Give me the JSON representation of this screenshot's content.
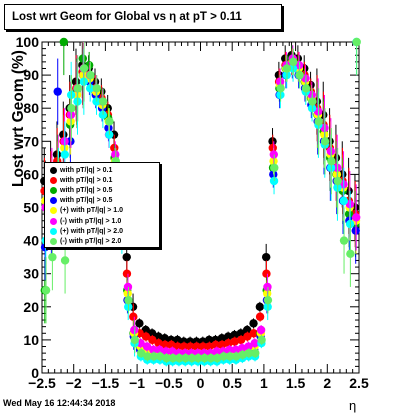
{
  "chart_data": {
    "type": "scatter",
    "title": "Lost wrt Geom for Global vs   η at pT > 0.11",
    "xlabel": "η",
    "ylabel": "Lost wrt Geom (%)",
    "xlim": [
      -2.5,
      2.5
    ],
    "ylim": [
      0,
      100
    ],
    "x_ticks": [
      "−2.5",
      "−2",
      "−1.5",
      "−1",
      "−0.5",
      "0",
      "0.5",
      "1",
      "1.5",
      "2",
      "2.5"
    ],
    "x_tick_values": [
      -2.5,
      -2,
      -1.5,
      -1,
      -0.5,
      0,
      0.5,
      1,
      1.5,
      2,
      2.5
    ],
    "y_ticks": [
      "0",
      "10",
      "20",
      "30",
      "40",
      "50",
      "60",
      "70",
      "80",
      "90",
      "100"
    ],
    "y_tick_values": [
      0,
      10,
      20,
      30,
      40,
      50,
      60,
      70,
      80,
      90,
      100
    ],
    "grid": false,
    "legend_position": "left-middle",
    "series": [
      {
        "name": "with pT/|q| > 0.1",
        "color": "#000000",
        "x": [
          -2.45,
          -2.35,
          -2.25,
          -2.15,
          -2.05,
          -1.95,
          -1.85,
          -1.75,
          -1.65,
          -1.55,
          -1.45,
          -1.35,
          -1.25,
          -1.15,
          -1.05,
          -0.95,
          -0.85,
          -0.75,
          -0.65,
          -0.55,
          -0.45,
          -0.35,
          -0.25,
          -0.15,
          -0.05,
          0.05,
          0.15,
          0.25,
          0.35,
          0.45,
          0.55,
          0.65,
          0.75,
          0.85,
          0.95,
          1.05,
          1.15,
          1.25,
          1.35,
          1.45,
          1.55,
          1.65,
          1.75,
          1.85,
          1.95,
          2.05,
          2.15,
          2.25,
          2.35,
          2.45
        ],
        "y": [
          58,
          60,
          66,
          72,
          80,
          88,
          93,
          92,
          88,
          85,
          80,
          72,
          55,
          35,
          20,
          15,
          13,
          12,
          11,
          10.5,
          10,
          10,
          9.5,
          9.5,
          9.5,
          9.5,
          10,
          10,
          10.5,
          11,
          11.5,
          12,
          13,
          15,
          20,
          35,
          70,
          90,
          95,
          96,
          95,
          92,
          87,
          82,
          78,
          70,
          65,
          60,
          55,
          50
        ]
      },
      {
        "name": "with pT/|q| > 0.1",
        "color": "#ff0000",
        "x": [
          -2.45,
          -2.35,
          -2.25,
          -2.15,
          -2.05,
          -1.95,
          -1.85,
          -1.75,
          -1.65,
          -1.55,
          -1.45,
          -1.35,
          -1.25,
          -1.15,
          -1.05,
          -0.95,
          -0.85,
          -0.75,
          -0.65,
          -0.55,
          -0.45,
          -0.35,
          -0.25,
          -0.15,
          -0.05,
          0.05,
          0.15,
          0.25,
          0.35,
          0.45,
          0.55,
          0.65,
          0.75,
          0.85,
          0.95,
          1.05,
          1.15,
          1.25,
          1.35,
          1.45,
          1.55,
          1.65,
          1.75,
          1.85,
          1.95,
          2.05,
          2.15,
          2.25,
          2.35,
          2.45
        ],
        "y": [
          55,
          57,
          64,
          70,
          78,
          86,
          91,
          90,
          86,
          83,
          78,
          68,
          50,
          30,
          17,
          12,
          11,
          10,
          9,
          8.5,
          8.5,
          8,
          8,
          8,
          8,
          8,
          8,
          8.5,
          8.5,
          9,
          9.5,
          10,
          11,
          12,
          17,
          30,
          68,
          88,
          93,
          94,
          93,
          90,
          85,
          80,
          75,
          68,
          62,
          58,
          52,
          48
        ]
      },
      {
        "name": "with pT/|q| > 0.5",
        "color": "#00aa00",
        "x": [
          -2.45,
          -2.35,
          -2.25,
          -2.15,
          -2.05,
          -1.95,
          -1.85,
          -1.75,
          -1.65,
          -1.55,
          -1.45,
          -1.35,
          -1.25,
          -1.15,
          -1.05,
          -0.95,
          -0.85,
          -0.75,
          -0.65,
          -0.55,
          -0.45,
          -0.35,
          -0.25,
          -0.15,
          -0.05,
          0.05,
          0.15,
          0.25,
          0.35,
          0.45,
          0.55,
          0.65,
          0.75,
          0.85,
          0.95,
          1.05,
          1.15,
          1.25,
          1.35,
          1.45,
          1.55,
          1.65,
          1.75,
          1.85,
          1.95,
          2.05,
          2.15,
          2.25,
          2.35,
          2.45
        ],
        "y": [
          25,
          50,
          62,
          100,
          75,
          85,
          95,
          93,
          85,
          82,
          77,
          65,
          45,
          25,
          12,
          8,
          7,
          6,
          6,
          5.5,
          5.5,
          5,
          5,
          5,
          5,
          5,
          5,
          5.5,
          5.5,
          6,
          6,
          6.5,
          7,
          8,
          12,
          25,
          62,
          86,
          92,
          95,
          92,
          88,
          83,
          78,
          73,
          65,
          60,
          55,
          48,
          45
        ]
      },
      {
        "name": "with pT/|q| > 0.5",
        "color": "#0000ff",
        "x": [
          -2.45,
          -2.35,
          -2.25,
          -2.15,
          -2.05,
          -1.95,
          -1.85,
          -1.75,
          -1.65,
          -1.55,
          -1.45,
          -1.35,
          -1.25,
          -1.15,
          -1.05,
          -0.95,
          -0.85,
          -0.75,
          -0.65,
          -0.55,
          -0.45,
          -0.35,
          -0.25,
          -0.15,
          -0.05,
          0.05,
          0.15,
          0.25,
          0.35,
          0.45,
          0.55,
          0.65,
          0.75,
          0.85,
          0.95,
          1.05,
          1.15,
          1.25,
          1.35,
          1.45,
          1.55,
          1.65,
          1.75,
          1.85,
          1.95,
          2.05,
          2.15,
          2.25,
          2.35,
          2.45
        ],
        "y": [
          38,
          45,
          85,
          60,
          70,
          84,
          90,
          88,
          84,
          80,
          74,
          62,
          42,
          22,
          11,
          7,
          6,
          5.5,
          5,
          5,
          4.5,
          4.5,
          4.5,
          4.5,
          4.5,
          4.5,
          4.5,
          4.5,
          5,
          5,
          5.5,
          6,
          6.5,
          7,
          11,
          22,
          60,
          84,
          90,
          93,
          90,
          86,
          81,
          76,
          70,
          62,
          58,
          52,
          46,
          43
        ]
      },
      {
        "name": "(+) with pT/|q| > 1.0",
        "color": "#ffff00",
        "x": [
          -2.45,
          -2.35,
          -2.25,
          -2.15,
          -2.05,
          -1.95,
          -1.85,
          -1.75,
          -1.65,
          -1.55,
          -1.45,
          -1.35,
          -1.25,
          -1.15,
          -1.05,
          -0.95,
          -0.85,
          -0.75,
          -0.65,
          -0.55,
          -0.45,
          -0.35,
          -0.25,
          -0.15,
          -0.05,
          0.05,
          0.15,
          0.25,
          0.35,
          0.45,
          0.55,
          0.65,
          0.75,
          0.85,
          0.95,
          1.05,
          1.15,
          1.25,
          1.35,
          1.45,
          1.55,
          1.65,
          1.75,
          1.85,
          1.95,
          2.05,
          2.15,
          2.25,
          2.35,
          2.45
        ],
        "y": [
          52,
          55,
          60,
          68,
          76,
          84,
          90,
          89,
          85,
          81,
          76,
          64,
          44,
          24,
          12,
          8,
          7,
          6,
          6,
          6,
          5.5,
          5.5,
          5.5,
          5.5,
          5.5,
          5.5,
          5.5,
          5.5,
          6,
          6,
          6.5,
          7,
          7.5,
          8,
          12,
          24,
          64,
          87,
          92,
          94,
          92,
          88,
          83,
          78,
          72,
          66,
          60,
          56,
          50,
          46
        ]
      },
      {
        "name": "(-) with pT/|q| > 1.0",
        "color": "#ff00ff",
        "x": [
          -2.45,
          -2.35,
          -2.25,
          -2.15,
          -2.05,
          -1.95,
          -1.85,
          -1.75,
          -1.65,
          -1.55,
          -1.45,
          -1.35,
          -1.25,
          -1.15,
          -1.05,
          -0.95,
          -0.85,
          -0.75,
          -0.65,
          -0.55,
          -0.45,
          -0.35,
          -0.25,
          -0.15,
          -0.05,
          0.05,
          0.15,
          0.25,
          0.35,
          0.45,
          0.55,
          0.65,
          0.75,
          0.85,
          0.95,
          1.05,
          1.15,
          1.25,
          1.35,
          1.45,
          1.55,
          1.65,
          1.75,
          1.85,
          1.95,
          2.05,
          2.15,
          2.25,
          2.35,
          2.45
        ],
        "y": [
          50,
          58,
          62,
          70,
          78,
          86,
          92,
          90,
          86,
          82,
          72,
          66,
          48,
          26,
          13,
          9,
          8,
          7,
          7,
          6.5,
          6.5,
          6,
          6,
          6,
          6,
          6,
          6,
          6.5,
          6.5,
          7,
          7,
          7.5,
          8,
          9,
          13,
          26,
          66,
          88,
          93,
          95,
          93,
          89,
          84,
          79,
          74,
          67,
          62,
          57,
          51,
          47
        ]
      },
      {
        "name": "(+) with pT/|q| > 2.0",
        "color": "#00ffff",
        "x": [
          -2.45,
          -2.35,
          -2.25,
          -2.15,
          -2.05,
          -1.95,
          -1.85,
          -1.75,
          -1.65,
          -1.55,
          -1.45,
          -1.35,
          -1.25,
          -1.15,
          -1.05,
          -0.95,
          -0.85,
          -0.75,
          -0.65,
          -0.55,
          -0.45,
          -0.35,
          -0.25,
          -0.15,
          -0.05,
          0.05,
          0.15,
          0.25,
          0.35,
          0.45,
          0.55,
          0.65,
          0.75,
          0.85,
          0.95,
          1.05,
          1.15,
          1.25,
          1.35,
          1.45,
          1.55,
          1.65,
          1.75,
          1.85,
          1.95,
          2.05,
          2.15,
          2.25,
          2.35,
          2.45
        ],
        "y": [
          40,
          48,
          58,
          66,
          84,
          82,
          88,
          86,
          82,
          78,
          72,
          60,
          40,
          20,
          9,
          5,
          4,
          4,
          4,
          3.5,
          3.5,
          3.5,
          3.5,
          3.5,
          3.5,
          3.5,
          3.5,
          3.5,
          4,
          4,
          4,
          4.5,
          5,
          5,
          9,
          20,
          58,
          84,
          90,
          92,
          90,
          85,
          80,
          75,
          69,
          62,
          56,
          52,
          45,
          100
        ]
      },
      {
        "name": "(-) with pT/|q| > 2.0",
        "color": "#66ee66",
        "x": [
          -2.45,
          -2.35,
          -2.25,
          -2.15,
          -2.05,
          -1.95,
          -1.85,
          -1.75,
          -1.65,
          -1.55,
          -1.45,
          -1.35,
          -1.25,
          -1.15,
          -1.05,
          -0.95,
          -0.85,
          -0.75,
          -0.65,
          -0.55,
          -0.45,
          -0.35,
          -0.25,
          -0.15,
          -0.05,
          0.05,
          0.15,
          0.25,
          0.35,
          0.45,
          0.55,
          0.65,
          0.75,
          0.85,
          0.95,
          1.05,
          1.15,
          1.25,
          1.35,
          1.45,
          1.55,
          1.65,
          1.75,
          1.85,
          1.95,
          2.05,
          2.15,
          2.25,
          2.35,
          2.45
        ],
        "y": [
          25,
          35,
          55,
          34,
          80,
          86,
          92,
          90,
          86,
          82,
          76,
          64,
          42,
          22,
          10,
          6,
          5,
          5,
          5,
          4.5,
          4.5,
          4.5,
          4.5,
          4.5,
          4.5,
          4.5,
          4.5,
          4.5,
          5,
          5,
          5,
          5.5,
          6,
          6,
          10,
          22,
          62,
          86,
          92,
          94,
          90,
          86,
          82,
          76,
          70,
          64,
          58,
          40,
          36,
          100
        ]
      }
    ]
  },
  "timestamp": "Wed May 16 12:44:34 2018"
}
